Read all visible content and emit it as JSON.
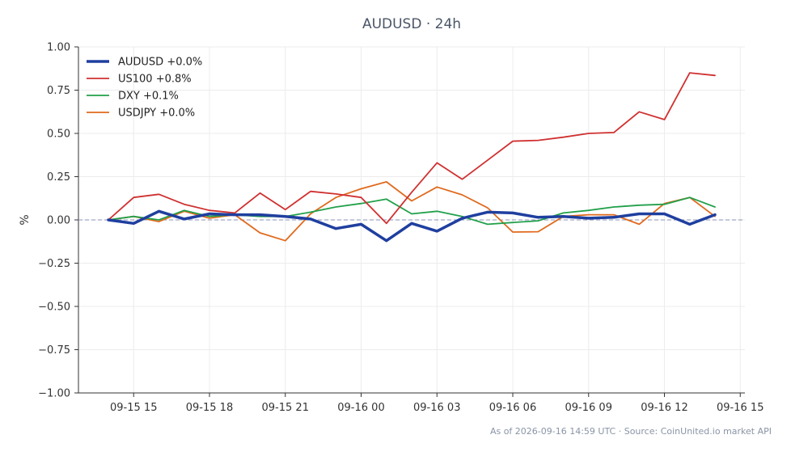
{
  "chart_data": {
    "type": "line",
    "title": "AUDUSD · 24h",
    "ylabel": "%",
    "ylim": [
      -1.0,
      1.0
    ],
    "yticks": [
      "1.00",
      "0.75",
      "0.50",
      "0.25",
      "0.00",
      "−0.25",
      "−0.50",
      "−0.75",
      "−1.00"
    ],
    "xticks": [
      "09-15 15",
      "09-15 18",
      "09-15 21",
      "09-16 00",
      "09-16 03",
      "09-16 06",
      "09-16 09",
      "09-16 12",
      "09-16 15"
    ],
    "x": [
      "09-15 14",
      "09-15 15",
      "09-15 16",
      "09-15 17",
      "09-15 18",
      "09-15 19",
      "09-15 20",
      "09-15 21",
      "09-15 22",
      "09-15 23",
      "09-16 00",
      "09-16 01",
      "09-16 02",
      "09-16 03",
      "09-16 04",
      "09-16 05",
      "09-16 06",
      "09-16 07",
      "09-16 08",
      "09-16 09",
      "09-16 10",
      "09-16 11",
      "09-16 12",
      "09-16 13",
      "09-16 14"
    ],
    "series": [
      {
        "name": "AUDUSD +0.0%",
        "color": "#1f3f9f",
        "width": 3.5,
        "values": [
          0.0,
          -0.02,
          0.05,
          0.005,
          0.035,
          0.03,
          0.03,
          0.02,
          0.005,
          -0.05,
          -0.025,
          -0.12,
          -0.02,
          -0.065,
          0.01,
          0.045,
          0.04,
          0.015,
          0.02,
          0.01,
          0.015,
          0.035,
          0.035,
          -0.025,
          0.03
        ]
      },
      {
        "name": "US100 +0.8%",
        "color": "#d03030",
        "width": 1.8,
        "values": [
          0.0,
          0.13,
          0.148,
          0.09,
          0.055,
          0.04,
          0.155,
          0.06,
          0.165,
          0.15,
          0.13,
          -0.02,
          0.16,
          0.33,
          0.235,
          0.345,
          0.455,
          0.46,
          0.478,
          0.5,
          0.505,
          0.625,
          0.58,
          0.85,
          0.835
        ]
      },
      {
        "name": "DXY +0.1%",
        "color": "#22a04a",
        "width": 1.8,
        "values": [
          0.0,
          0.02,
          0.0,
          0.055,
          0.02,
          0.03,
          0.02,
          0.02,
          0.045,
          0.075,
          0.095,
          0.12,
          0.035,
          0.05,
          0.02,
          -0.025,
          -0.015,
          -0.005,
          0.04,
          0.055,
          0.075,
          0.085,
          0.09,
          0.13,
          0.075
        ]
      },
      {
        "name": "USDJPY +0.0%",
        "color": "#e06a1e",
        "width": 1.8,
        "values": [
          0.0,
          0.02,
          -0.01,
          0.05,
          0.01,
          0.03,
          -0.075,
          -0.12,
          0.035,
          0.13,
          0.18,
          0.22,
          0.11,
          0.19,
          0.145,
          0.07,
          -0.07,
          -0.068,
          0.02,
          0.03,
          0.03,
          -0.025,
          0.095,
          0.13,
          0.02
        ]
      }
    ],
    "legend_position": "top-left",
    "grid": true,
    "zero_line": true
  },
  "footer_text": "As of 2026-09-16 14:59 UTC · Source: CoinUnited.io market API"
}
